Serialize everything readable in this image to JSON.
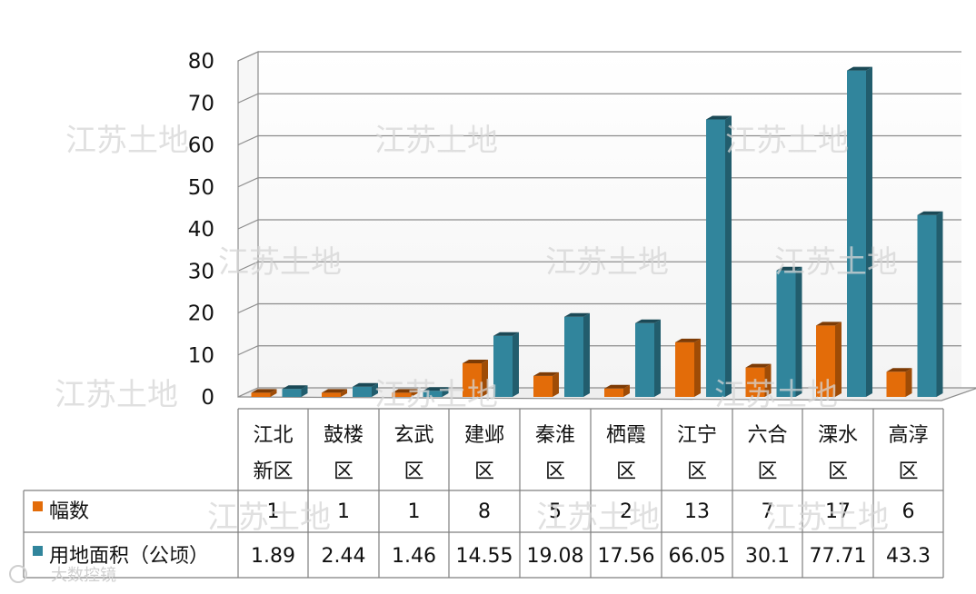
{
  "chart_data": {
    "type": "bar",
    "categories": [
      [
        "江北",
        "新区"
      ],
      [
        "鼓楼",
        "区"
      ],
      [
        "玄武",
        "区"
      ],
      [
        "建邺",
        "区"
      ],
      [
        "秦淮",
        "区"
      ],
      [
        "栖霞",
        "区"
      ],
      [
        "江宁",
        "区"
      ],
      [
        "六合",
        "区"
      ],
      [
        "溧水",
        "区"
      ],
      [
        "高淳",
        "区"
      ]
    ],
    "series": [
      {
        "name": "幅数",
        "values": [
          1,
          1,
          1,
          8,
          5,
          2,
          13,
          7,
          17,
          6
        ],
        "color": "#e36c09"
      },
      {
        "name": "用地面积（公顷）",
        "values": [
          1.89,
          2.44,
          1.46,
          14.55,
          19.08,
          17.56,
          66.05,
          30.1,
          77.71,
          43.3
        ],
        "color": "#31859c"
      }
    ],
    "table_values": [
      [
        "1",
        "1",
        "1",
        "8",
        "5",
        "2",
        "13",
        "7",
        "17",
        "6"
      ],
      [
        "1.89",
        "2.44",
        "1.46",
        "14.55",
        "19.08",
        "17.56",
        "66.05",
        "30.1",
        "77.71",
        "43.3"
      ]
    ],
    "yticks": [
      "0",
      "10",
      "20",
      "30",
      "40",
      "50",
      "60",
      "70",
      "80"
    ],
    "ylim": [
      0,
      80
    ],
    "grid": true,
    "legend": "data-table",
    "style": "3d-column"
  },
  "watermark": "江苏土地",
  "logo_text": "大数控镜"
}
